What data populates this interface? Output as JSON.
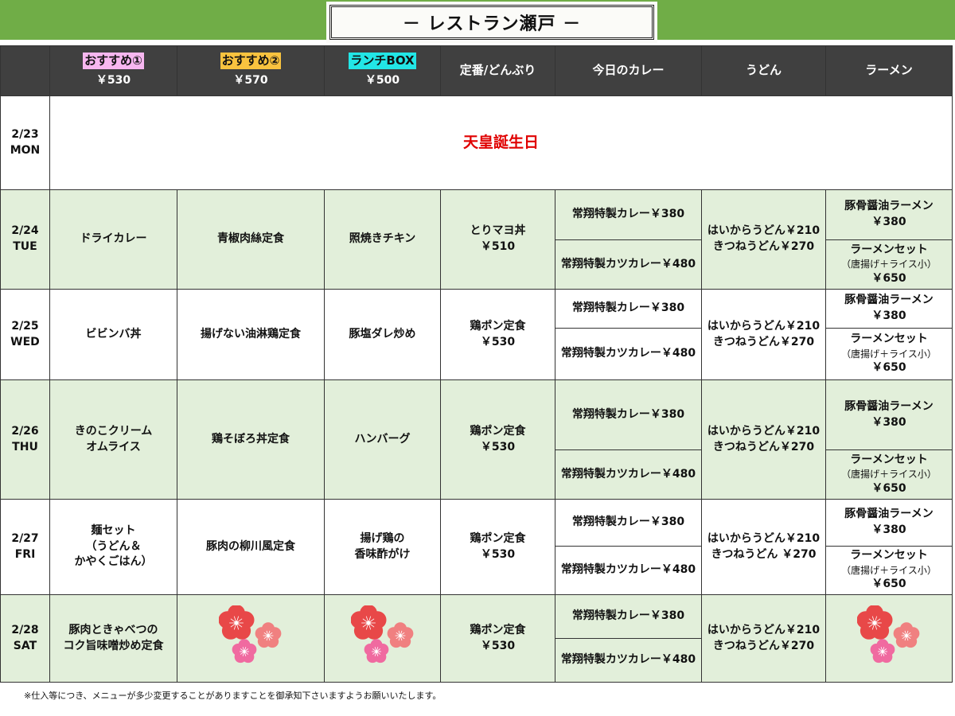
{
  "title": "－ レストラン瀬戸 －",
  "colors": {
    "band": "#70ad47",
    "header": "#404040",
    "row_green": "#e2efda",
    "holiday": "#e00000"
  },
  "columns": [
    {
      "label": "",
      "price": ""
    },
    {
      "label": "おすすめ①",
      "price": "￥530",
      "highlight": "#f7b7f0"
    },
    {
      "label": "おすすめ②",
      "price": "￥570",
      "highlight": "#f9c33f"
    },
    {
      "label": "ランチBOX",
      "price": "￥500",
      "highlight": "#22e6e6"
    },
    {
      "label": "定番/どんぶり",
      "price": ""
    },
    {
      "label": "今日のカレー",
      "price": ""
    },
    {
      "label": "うどん",
      "price": ""
    },
    {
      "label": "ラーメン",
      "price": ""
    }
  ],
  "holiday": {
    "date": "2/23",
    "dow": "MON",
    "text": "天皇誕生日"
  },
  "days": [
    {
      "date": "2/24",
      "dow": "TUE",
      "rec1": [
        "ドライカレー"
      ],
      "rec2": [
        "青椒肉絲定食"
      ],
      "box": [
        "照焼きチキン"
      ],
      "don": [
        "とりマヨ丼",
        "￥510"
      ],
      "curry1": "常翔特製カレー￥380",
      "curry2": "常翔特製カツカレー￥480",
      "udon": [
        "はいからうどん￥210",
        "きつねうどん￥270"
      ],
      "ramen1": [
        "豚骨醤油ラーメン",
        "￥380"
      ],
      "ramen2": [
        "ラーメンセット",
        "（唐揚げ＋ライス小）",
        "￥650"
      ]
    },
    {
      "date": "2/25",
      "dow": "WED",
      "rec1": [
        "ビビンバ丼"
      ],
      "rec2": [
        "揚げない油淋鶏定食"
      ],
      "box": [
        "豚塩ダレ炒め"
      ],
      "don": [
        "鶏ポン定食",
        "￥530"
      ],
      "curry1": "常翔特製カレー￥380",
      "curry2": "常翔特製カツカレー￥480",
      "udon": [
        "はいからうどん￥210",
        "きつねうどん￥270"
      ],
      "ramen1": [
        "豚骨醤油ラーメン",
        "￥380"
      ],
      "ramen2": [
        "ラーメンセット",
        "（唐揚げ＋ライス小）",
        "￥650"
      ]
    },
    {
      "date": "2/26",
      "dow": "THU",
      "rec1": [
        "きのこクリーム",
        "オムライス"
      ],
      "rec2": [
        "鶏そぼろ丼定食"
      ],
      "box": [
        "ハンバーグ"
      ],
      "don": [
        "鶏ポン定食",
        "￥530"
      ],
      "curry1": "常翔特製カレー￥380",
      "curry2": "常翔特製カツカレー￥480",
      "udon": [
        "はいからうどん￥210",
        "きつねうどん￥270"
      ],
      "ramen1": [
        "豚骨醤油ラーメン",
        "￥380"
      ],
      "ramen2": [
        "ラーメンセット",
        "（唐揚げ＋ライス小）",
        "￥650"
      ]
    },
    {
      "date": "2/27",
      "dow": "FRI",
      "rec1": [
        "麺セット",
        "（うどん＆",
        "かやくごはん）"
      ],
      "rec2": [
        "豚肉の柳川風定食"
      ],
      "box": [
        "揚げ鶏の",
        "香味酢がけ"
      ],
      "don": [
        "鶏ポン定食",
        "￥530"
      ],
      "curry1": "常翔特製カレー￥380",
      "curry2": "常翔特製カツカレー￥480",
      "udon": [
        "はいからうどん￥210",
        "きつねうどん ￥270"
      ],
      "ramen1": [
        "豚骨醤油ラーメン",
        "￥380"
      ],
      "ramen2": [
        "ラーメンセット",
        "（唐揚げ＋ライス小）",
        "￥650"
      ]
    },
    {
      "date": "2/28",
      "dow": "SAT",
      "rec1": [
        "豚肉ときゃべつの",
        "コク旨味噌炒め定食"
      ],
      "rec2": null,
      "box": null,
      "don": [
        "鶏ポン定食",
        "￥530"
      ],
      "curry1": "常翔特製カレー￥380",
      "curry2": "常翔特製カツカレー￥480",
      "udon": [
        "はいからうどん￥210",
        "きつねうどん￥270"
      ],
      "ramen1": null,
      "ramen2": null
    }
  ],
  "note": "※仕入等につき、メニューが多少変更することがありますことを御承知下さいますようお願いいたします。"
}
